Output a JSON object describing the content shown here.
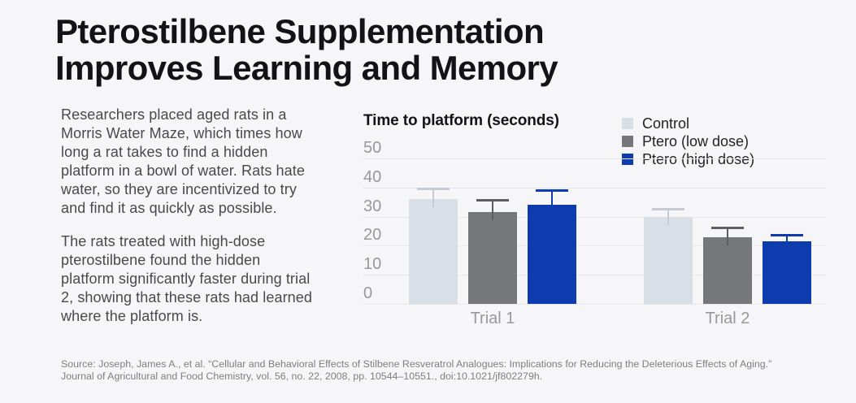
{
  "header": {
    "title": "Pterostilbene Supplementation\nImproves Learning and Memory"
  },
  "description": {
    "paragraphs": [
      "Researchers placed aged rats in a\nMorris Water Maze, which times how\nlong a rat takes to find a hidden\nplatform in a bowl of water. Rats hate\nwater, so they are incentivized to try\nand find it as quickly as possible.",
      "The rats treated with high-dose\npterostilbene found the hidden\nplatform significantly faster during trial\n2, showing that these rats had learned\nwhere the platform is."
    ]
  },
  "source": {
    "text": "Source: Joseph, James A., et al. “Cellular and Behavioral Effects of Stilbene Resveratrol Analogues: Implications for Reducing the Deleterious Effects of Aging.”\nJournal of Agricultural and Food Chemistry, vol. 56, no. 22, 2008, pp. 10544–10551., doi:10.1021/jf802279h."
  },
  "chart_data": {
    "type": "bar",
    "title": "Time to platform (seconds)",
    "categories": [
      "Trial 1",
      "Trial 2"
    ],
    "series": [
      {
        "name": "Control",
        "values": [
          36,
          30
        ],
        "error_upper": [
          40,
          33
        ],
        "color": "#d9dfe6",
        "error_color": "#c4cbd4"
      },
      {
        "name": "Ptero (low dose)",
        "values": [
          31.5,
          23
        ],
        "error_upper": [
          36,
          26.5
        ],
        "color": "#76777a",
        "error_color": "#5d5e61"
      },
      {
        "name": "Ptero (high dose)",
        "values": [
          34,
          21.5
        ],
        "error_upper": [
          39.5,
          24
        ],
        "color": "#0e3bae",
        "error_color": "#0e3bae"
      }
    ],
    "yticks": [
      50,
      40,
      30,
      20,
      10,
      0
    ],
    "ylim": [
      0,
      50
    ],
    "grid": true,
    "legend_position": "top-right",
    "xlabel": "",
    "ylabel": "Time to platform (seconds)"
  }
}
